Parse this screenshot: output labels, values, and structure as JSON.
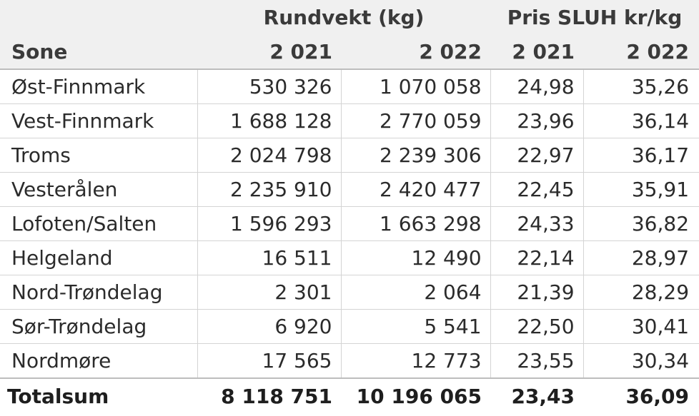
{
  "table": {
    "group_headers": {
      "weight": "Rundvekt (kg)",
      "price": "Pris SLUH kr/kg"
    },
    "columns": [
      "Sone",
      "2 021",
      "2 022",
      "2 021",
      "2 022"
    ],
    "rows": [
      [
        "Øst-Finnmark",
        "530 326",
        "1 070 058",
        "24,98",
        "35,26"
      ],
      [
        "Vest-Finnmark",
        "1 688 128",
        "2 770 059",
        "23,96",
        "36,14"
      ],
      [
        "Troms",
        "2 024 798",
        "2 239 306",
        "22,97",
        "36,17"
      ],
      [
        "Vesterålen",
        "2 235 910",
        "2 420 477",
        "22,45",
        "35,91"
      ],
      [
        "Lofoten/Salten",
        "1 596 293",
        "1 663 298",
        "24,33",
        "36,82"
      ],
      [
        "Helgeland",
        "16 511",
        "12 490",
        "22,14",
        "28,97"
      ],
      [
        "Nord-Trøndelag",
        "2 301",
        "2 064",
        "21,39",
        "28,29"
      ],
      [
        "Sør-Trøndelag",
        "6 920",
        "5 541",
        "22,50",
        "30,41"
      ],
      [
        "Nordmøre",
        "17 565",
        "12 773",
        "23,55",
        "30,34"
      ]
    ],
    "total": [
      "Totalsum",
      "8 118 751",
      "10 196 065",
      "23,43",
      "36,09"
    ]
  }
}
